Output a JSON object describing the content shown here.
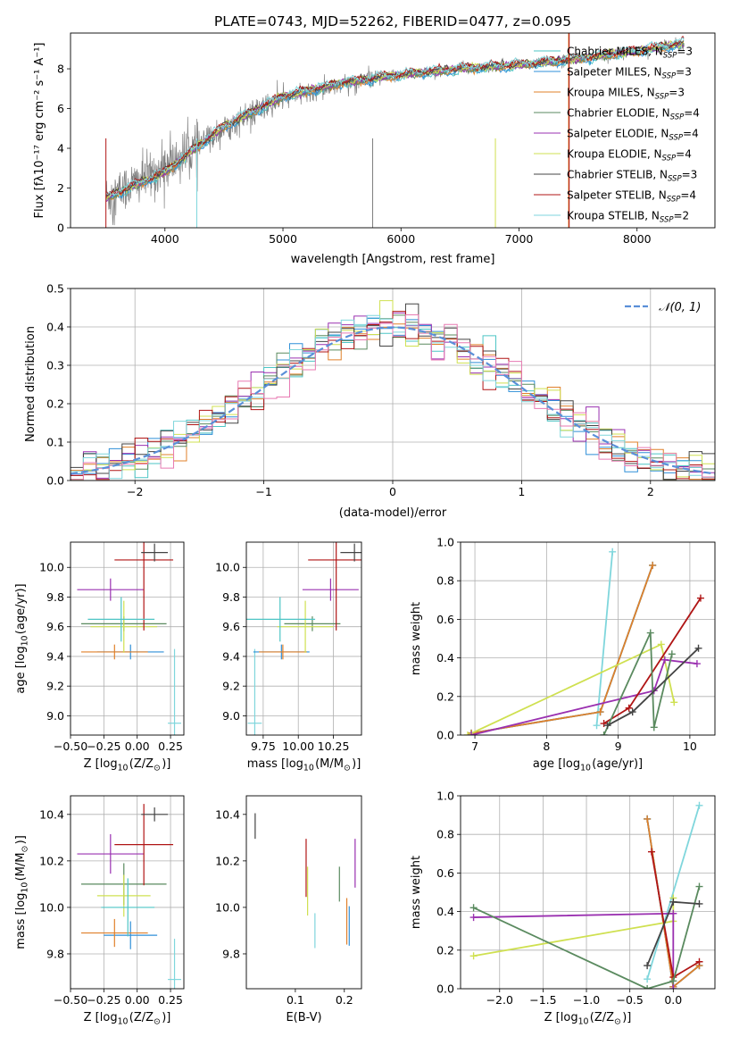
{
  "title": "PLATE=0743, MJD=52262, FIBERID=0477, z=0.095",
  "colors": {
    "Chabrier MILES": "#4dc5c5",
    "Salpeter MILES": "#2f8fd8",
    "Kroupa MILES": "#e0802a",
    "Chabrier ELODIE": "#5a8a5f",
    "Salpeter ELODIE": "#9a30b0",
    "Kroupa ELODIE": "#cfe050",
    "Chabrier STELIB": "#444444",
    "Salpeter STELIB": "#b01515",
    "Kroupa STELIB": "#7fd6dc",
    "data": "#808080",
    "normal": "#5a8fd8",
    "extra_hist": "#e87ab2"
  },
  "legend": [
    {
      "model": "Chabrier MILES",
      "label": "Chabrier MILES, N",
      "sub": "SSP",
      "suffix": "=3"
    },
    {
      "model": "Salpeter MILES",
      "label": "Salpeter MILES, N",
      "sub": "SSP",
      "suffix": "=3"
    },
    {
      "model": "Kroupa MILES",
      "label": "Kroupa MILES, N",
      "sub": "SSP",
      "suffix": "=3"
    },
    {
      "model": "Chabrier ELODIE",
      "label": "Chabrier ELODIE, N",
      "sub": "SSP",
      "suffix": "=4"
    },
    {
      "model": "Salpeter ELODIE",
      "label": "Salpeter ELODIE, N",
      "sub": "SSP",
      "suffix": "=4"
    },
    {
      "model": "Kroupa ELODIE",
      "label": "Kroupa ELODIE, N",
      "sub": "SSP",
      "suffix": "=4"
    },
    {
      "model": "Chabrier STELIB",
      "label": "Chabrier STELIB, N",
      "sub": "SSP",
      "suffix": "=3"
    },
    {
      "model": "Salpeter STELIB",
      "label": "Salpeter STELIB, N",
      "sub": "SSP",
      "suffix": "=4"
    },
    {
      "model": "Kroupa STELIB",
      "label": "Kroupa STELIB, N",
      "sub": "SSP",
      "suffix": "=2"
    }
  ],
  "chart_data": [
    {
      "id": "spectrum",
      "type": "line",
      "xlabel": "wavelength [Angstrom, rest frame]",
      "ylabel": "Flux [fλ10⁻¹⁷ erg cm⁻² s⁻¹ A⁻¹]",
      "xlim": [
        3200,
        8660
      ],
      "ylim": [
        0,
        9.8
      ],
      "xticks": [
        4000,
        5000,
        6000,
        7000,
        8000
      ],
      "yticks": [
        0,
        2,
        4,
        6,
        8
      ],
      "grid": false,
      "legend_position": "top-right",
      "data_trend": {
        "x": [
          3500,
          4000,
          4500,
          5000,
          5500,
          6000,
          6500,
          7000,
          7500,
          8000,
          8400
        ],
        "y": [
          1.5,
          3.0,
          5.0,
          6.5,
          7.2,
          7.7,
          8.0,
          8.2,
          8.5,
          8.9,
          9.2
        ]
      },
      "model_trend": {
        "x": [
          3500,
          4000,
          4500,
          5000,
          5500,
          6000,
          6500,
          7000,
          7500,
          8000,
          8400
        ],
        "y": [
          1.5,
          2.8,
          5.1,
          6.6,
          7.3,
          7.7,
          8.0,
          8.2,
          8.5,
          8.9,
          9.3
        ]
      }
    },
    {
      "id": "residuals",
      "type": "histogram",
      "xlabel": "(data-model)/error",
      "ylabel": "Normed distribution",
      "xlim": [
        -2.5,
        2.5
      ],
      "ylim": [
        0,
        0.5
      ],
      "xticks": [
        -2,
        -1,
        0,
        1,
        2
      ],
      "yticks": [
        0.0,
        0.1,
        0.2,
        0.3,
        0.4,
        0.5
      ],
      "grid": true,
      "legend": "𝒩(0, 1)",
      "legend_position": "top-right",
      "bin_width": 0.1
    },
    {
      "id": "age-vs-Z",
      "type": "errorbar",
      "xlabel": "Z [log10(Z/Z⊙)]",
      "ylabel": "age  [log10(age/yr)]",
      "xlim": [
        -0.5,
        0.35
      ],
      "ylim": [
        8.87,
        10.17
      ],
      "xticks": [
        -0.5,
        -0.25,
        0.0,
        0.25
      ],
      "yticks": [
        9.0,
        9.2,
        9.4,
        9.6,
        9.8,
        10.0
      ],
      "grid": true,
      "points": [
        {
          "model": "Kroupa STELIB",
          "x": 0.28,
          "xerr": 0.05,
          "y": 8.95,
          "yerr": 1.0
        },
        {
          "model": "Salpeter MILES",
          "x": -0.05,
          "xerr": 0.25,
          "y": 9.43,
          "yerr": 0.1
        },
        {
          "model": "Kroupa MILES",
          "x": -0.17,
          "xerr": 0.25,
          "y": 9.43,
          "yerr": 0.1
        },
        {
          "model": "Chabrier ELODIE",
          "x": -0.1,
          "xerr": 0.32,
          "y": 9.62,
          "yerr": 0.1
        },
        {
          "model": "Kroupa ELODIE",
          "x": -0.1,
          "xerr": 0.25,
          "y": 9.6,
          "yerr": 0.35
        },
        {
          "model": "Salpeter ELODIE",
          "x": -0.2,
          "xerr": 0.25,
          "y": 9.85,
          "yerr": 0.15
        },
        {
          "model": "Salpeter STELIB",
          "x": 0.05,
          "xerr": 0.22,
          "y": 10.05,
          "yerr": 0.95
        },
        {
          "model": "Chabrier STELIB",
          "x": 0.13,
          "xerr": 0.1,
          "y": 10.1,
          "yerr": 0.12
        },
        {
          "model": "Chabrier MILES",
          "x": -0.12,
          "xerr": 0.25,
          "y": 9.65,
          "yerr": 0.3
        }
      ]
    },
    {
      "id": "age-vs-mass",
      "type": "errorbar",
      "xlabel": "mass [log10(M/M⊙)]",
      "ylabel": "",
      "xlim": [
        9.63,
        10.45
      ],
      "ylim": [
        8.87,
        10.17
      ],
      "xticks": [
        9.75,
        10.0,
        10.25
      ],
      "yticks": [
        9.0,
        9.2,
        9.4,
        9.6,
        9.8,
        10.0
      ],
      "grid": true,
      "points": [
        {
          "model": "Kroupa STELIB",
          "x": 9.69,
          "xerr": 0.05,
          "y": 8.95,
          "yerr": 1.0
        },
        {
          "model": "Salpeter MILES",
          "x": 9.88,
          "xerr": 0.2,
          "y": 9.43,
          "yerr": 0.1
        },
        {
          "model": "Kroupa MILES",
          "x": 9.89,
          "xerr": 0.17,
          "y": 9.43,
          "yerr": 0.1
        },
        {
          "model": "Chabrier ELODIE",
          "x": 10.1,
          "xerr": 0.2,
          "y": 9.62,
          "yerr": 0.1
        },
        {
          "model": "Kroupa ELODIE",
          "x": 10.05,
          "xerr": 0.2,
          "y": 9.6,
          "yerr": 0.35
        },
        {
          "model": "Salpeter ELODIE",
          "x": 10.23,
          "xerr": 0.2,
          "y": 9.85,
          "yerr": 0.15
        },
        {
          "model": "Salpeter STELIB",
          "x": 10.27,
          "xerr": 0.2,
          "y": 10.05,
          "yerr": 0.95
        },
        {
          "model": "Chabrier STELIB",
          "x": 10.4,
          "xerr": 0.1,
          "y": 10.1,
          "yerr": 0.12
        },
        {
          "model": "Chabrier MILES",
          "x": 9.87,
          "xerr": 0.25,
          "y": 9.65,
          "yerr": 0.3
        }
      ]
    },
    {
      "id": "weight-vs-age",
      "type": "line",
      "xlabel": "age  [log10(age/yr)]",
      "ylabel": "mass weight",
      "xlim": [
        6.8,
        10.35
      ],
      "ylim": [
        0,
        1
      ],
      "xticks": [
        7,
        8,
        9,
        10
      ],
      "yticks": [
        0.0,
        0.2,
        0.4,
        0.6,
        0.8,
        1.0
      ],
      "grid": true,
      "series": [
        {
          "model": "Kroupa STELIB",
          "x": [
            8.7,
            8.92
          ],
          "y": [
            0.05,
            0.95
          ]
        },
        {
          "model": "Chabrier MILES",
          "x": [
            6.95,
            8.75,
            9.48
          ],
          "y": [
            0.01,
            0.12,
            0.88
          ]
        },
        {
          "model": "Salpeter MILES",
          "x": [
            6.95,
            8.75,
            9.48
          ],
          "y": [
            0.01,
            0.12,
            0.88
          ]
        },
        {
          "model": "Kroupa MILES",
          "x": [
            6.95,
            8.75,
            9.48
          ],
          "y": [
            0.01,
            0.12,
            0.88
          ]
        },
        {
          "model": "Kroupa ELODIE",
          "x": [
            6.9,
            9.6,
            9.78
          ],
          "y": [
            0.0,
            0.47,
            0.17
          ]
        },
        {
          "model": "Salpeter ELODIE",
          "x": [
            6.95,
            9.5,
            9.65,
            10.1
          ],
          "y": [
            0.0,
            0.23,
            0.39,
            0.37
          ]
        },
        {
          "model": "Salpeter STELIB",
          "x": [
            8.8,
            9.15,
            10.15
          ],
          "y": [
            0.06,
            0.14,
            0.71
          ]
        },
        {
          "model": "Chabrier ELODIE",
          "x": [
            8.8,
            9.45,
            9.5,
            9.75
          ],
          "y": [
            0.0,
            0.53,
            0.04,
            0.42
          ]
        },
        {
          "model": "Chabrier STELIB",
          "x": [
            8.85,
            9.2,
            10.12
          ],
          "y": [
            0.05,
            0.12,
            0.45
          ]
        }
      ]
    },
    {
      "id": "mass-vs-Z",
      "type": "errorbar",
      "xlabel": "Z [log10(Z/Z⊙)]",
      "ylabel": "mass [log10(M/M⊙)]",
      "xlim": [
        -0.5,
        0.35
      ],
      "ylim": [
        9.65,
        10.48
      ],
      "xticks": [
        -0.5,
        -0.25,
        0.0,
        0.25
      ],
      "yticks": [
        9.8,
        10.0,
        10.2,
        10.4
      ],
      "grid": true,
      "points": [
        {
          "model": "Kroupa STELIB",
          "x": 0.28,
          "xerr": 0.05,
          "y": 9.69,
          "yerr": 0.35
        },
        {
          "model": "Salpeter MILES",
          "x": -0.05,
          "xerr": 0.2,
          "y": 9.88,
          "yerr": 0.12
        },
        {
          "model": "Kroupa MILES",
          "x": -0.17,
          "xerr": 0.25,
          "y": 9.89,
          "yerr": 0.12
        },
        {
          "model": "Chabrier ELODIE",
          "x": -0.1,
          "xerr": 0.32,
          "y": 10.1,
          "yerr": 0.18
        },
        {
          "model": "Kroupa ELODIE",
          "x": -0.1,
          "xerr": 0.2,
          "y": 10.05,
          "yerr": 0.18
        },
        {
          "model": "Salpeter ELODIE",
          "x": -0.2,
          "xerr": 0.25,
          "y": 10.23,
          "yerr": 0.17
        },
        {
          "model": "Salpeter STELIB",
          "x": 0.05,
          "xerr": 0.22,
          "y": 10.27,
          "yerr": 0.35
        },
        {
          "model": "Chabrier STELIB",
          "x": 0.13,
          "xerr": 0.1,
          "y": 10.4,
          "yerr": 0.06
        },
        {
          "model": "Chabrier MILES",
          "x": -0.07,
          "xerr": 0.2,
          "y": 10.0,
          "yerr": 0.25
        }
      ]
    },
    {
      "id": "mass-vs-EBV",
      "type": "errorbar",
      "xlabel": "E(B-V)",
      "ylabel": "",
      "xlim": [
        0.0,
        0.235
      ],
      "ylim": [
        9.65,
        10.48
      ],
      "xticks": [
        0.1,
        0.2
      ],
      "yticks": [
        9.8,
        10.0,
        10.2,
        10.4
      ],
      "grid": false,
      "points": [
        {
          "model": "Chabrier STELIB",
          "x": 0.018,
          "y": 10.35,
          "yerr": 0.11
        },
        {
          "model": "Salpeter STELIB",
          "x": 0.122,
          "y": 10.17,
          "yerr": 0.25
        },
        {
          "model": "Kroupa ELODIE",
          "x": 0.125,
          "y": 10.07,
          "yerr": 0.21
        },
        {
          "model": "Kroupa STELIB",
          "x": 0.14,
          "y": 9.9,
          "yerr": 0.15
        },
        {
          "model": "Salpeter ELODIE",
          "x": 0.222,
          "y": 10.19,
          "yerr": 0.21
        },
        {
          "model": "Kroupa MILES",
          "x": 0.205,
          "y": 9.94,
          "yerr": 0.2
        },
        {
          "model": "Salpeter MILES",
          "x": 0.21,
          "y": 9.92,
          "yerr": 0.17
        },
        {
          "model": "Chabrier ELODIE",
          "x": 0.19,
          "y": 10.1,
          "yerr": 0.15
        }
      ]
    },
    {
      "id": "weight-vs-Z",
      "type": "line",
      "xlabel": "Z [log10(Z/Z⊙)]",
      "ylabel": "mass weight",
      "xlim": [
        -2.45,
        0.48
      ],
      "ylim": [
        0,
        1
      ],
      "xticks": [
        -2.0,
        -1.5,
        -1.0,
        -0.5,
        0.0
      ],
      "yticks": [
        0.0,
        0.2,
        0.4,
        0.6,
        0.8,
        1.0
      ],
      "grid": true,
      "series": [
        {
          "model": "Kroupa STELIB",
          "x": [
            -0.3,
            0.3
          ],
          "y": [
            0.05,
            0.95
          ]
        },
        {
          "model": "Chabrier MILES",
          "x": [
            -0.3,
            0.0,
            0.3
          ],
          "y": [
            0.88,
            0.01,
            0.12
          ]
        },
        {
          "model": "Salpeter MILES",
          "x": [
            -0.3,
            0.0,
            0.3
          ],
          "y": [
            0.88,
            0.01,
            0.12
          ]
        },
        {
          "model": "Kroupa MILES",
          "x": [
            -0.3,
            0.0,
            0.3
          ],
          "y": [
            0.88,
            0.01,
            0.12
          ]
        },
        {
          "model": "Kroupa ELODIE",
          "x": [
            -2.3,
            0.0,
            0.0
          ],
          "y": [
            0.17,
            0.35,
            0.47
          ]
        },
        {
          "model": "Salpeter ELODIE",
          "x": [
            -2.3,
            0.0,
            0.0
          ],
          "y": [
            0.37,
            0.39,
            0.0
          ]
        },
        {
          "model": "Salpeter STELIB",
          "x": [
            -0.25,
            0.0,
            0.3
          ],
          "y": [
            0.71,
            0.06,
            0.14
          ]
        },
        {
          "model": "Chabrier ELODIE",
          "x": [
            -2.3,
            -0.3,
            0.0,
            0.3
          ],
          "y": [
            0.42,
            0.0,
            0.04,
            0.53
          ]
        },
        {
          "model": "Chabrier STELIB",
          "x": [
            -0.3,
            0.0,
            0.3
          ],
          "y": [
            0.12,
            0.45,
            0.44
          ]
        }
      ]
    }
  ]
}
